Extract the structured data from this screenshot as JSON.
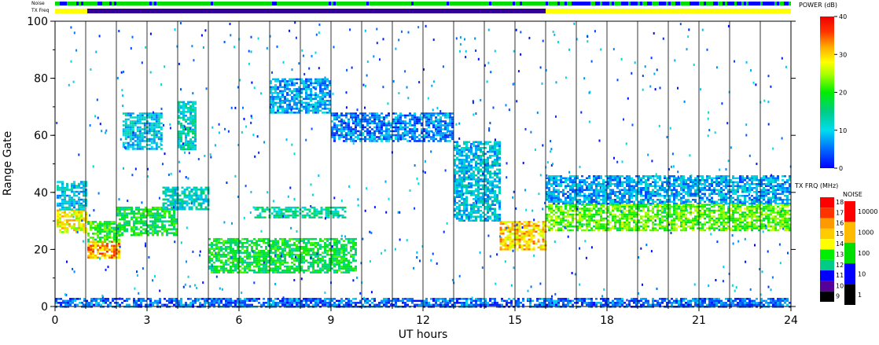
{
  "chart_data": {
    "type": "heatmap",
    "xlabel": "UT hours",
    "ylabel": "Range Gate",
    "xlim": [
      0,
      24
    ],
    "ylim": [
      0,
      100
    ],
    "x_ticks": [
      0,
      3,
      6,
      9,
      12,
      15,
      18,
      21,
      24
    ],
    "y_ticks": [
      0,
      20,
      40,
      60,
      80,
      100
    ],
    "grid": "vertical lines every hour",
    "status_bars": [
      {
        "label": "Noise",
        "segments": [
          {
            "from": 0,
            "to": 24,
            "level": "mixed 10-100"
          }
        ]
      },
      {
        "label": "TX Freq",
        "segments": [
          {
            "from": 0,
            "to": 1.05,
            "freq_mhz": 14
          },
          {
            "from": 1.05,
            "to": 16.0,
            "freq_mhz": 11
          },
          {
            "from": 16.0,
            "to": 24,
            "freq_mhz": 14
          }
        ]
      }
    ],
    "echo_regions": [
      {
        "x0": 0.05,
        "x1": 1.0,
        "y0": 26,
        "y1": 34,
        "power_db": 28
      },
      {
        "x0": 0.05,
        "x1": 1.0,
        "y0": 34,
        "y1": 44,
        "power_db": 10
      },
      {
        "x0": 1.05,
        "x1": 2.1,
        "y0": 17,
        "y1": 23,
        "power_db": 32
      },
      {
        "x0": 1.05,
        "x1": 2.1,
        "y0": 23,
        "y1": 30,
        "power_db": 20
      },
      {
        "x0": 2.0,
        "x1": 4.0,
        "y0": 25,
        "y1": 35,
        "power_db": 18
      },
      {
        "x0": 3.5,
        "x1": 5.0,
        "y0": 34,
        "y1": 42,
        "power_db": 12
      },
      {
        "x0": 4.0,
        "x1": 4.6,
        "y0": 55,
        "y1": 72,
        "power_db": 12
      },
      {
        "x0": 2.2,
        "x1": 3.5,
        "y0": 55,
        "y1": 68,
        "power_db": 10
      },
      {
        "x0": 5.0,
        "x1": 9.8,
        "y0": 12,
        "y1": 24,
        "power_db": 18
      },
      {
        "x0": 6.5,
        "x1": 9.5,
        "y0": 31,
        "y1": 35,
        "power_db": 14
      },
      {
        "x0": 7.0,
        "x1": 9.0,
        "y0": 68,
        "y1": 80,
        "power_db": 8
      },
      {
        "x0": 9.0,
        "x1": 13.0,
        "y0": 58,
        "y1": 68,
        "power_db": 6
      },
      {
        "x0": 13.0,
        "x1": 14.5,
        "y0": 30,
        "y1": 58,
        "power_db": 10
      },
      {
        "x0": 14.5,
        "x1": 16.0,
        "y0": 20,
        "y1": 30,
        "power_db": 30
      },
      {
        "x0": 16.0,
        "x1": 24.0,
        "y0": 36,
        "y1": 46,
        "power_db": 8
      },
      {
        "x0": 16.0,
        "x1": 24.0,
        "y0": 27,
        "y1": 36,
        "power_db": 22
      },
      {
        "x0": 0.0,
        "x1": 24.0,
        "y0": 0,
        "y1": 3,
        "power_db": 5
      }
    ]
  },
  "power_scale": {
    "title": "POWER (dB)",
    "ticks": [
      "40",
      "30",
      "20",
      "10",
      "0"
    ]
  },
  "txfreq_scale": {
    "title": "TX FRQ (MHz)",
    "ticks": [
      "18",
      "17",
      "16",
      "15",
      "14",
      "13",
      "12",
      "11",
      "10",
      "9"
    ],
    "colors": [
      "#ff0000",
      "#ff3300",
      "#ff9900",
      "#ffcc00",
      "#ffff00",
      "#00ee00",
      "#00cc88",
      "#0000ff",
      "#550099",
      "#000000"
    ]
  },
  "noise_scale": {
    "title": "NOISE",
    "ticks": [
      "10000",
      "1000",
      "100",
      "10",
      "1"
    ],
    "colors": [
      "#ff0000",
      "#ffbb00",
      "#00dd00",
      "#0000ff",
      "#000000"
    ]
  },
  "status_labels": {
    "noise": "Noise",
    "txfreq": "TX Freq"
  }
}
